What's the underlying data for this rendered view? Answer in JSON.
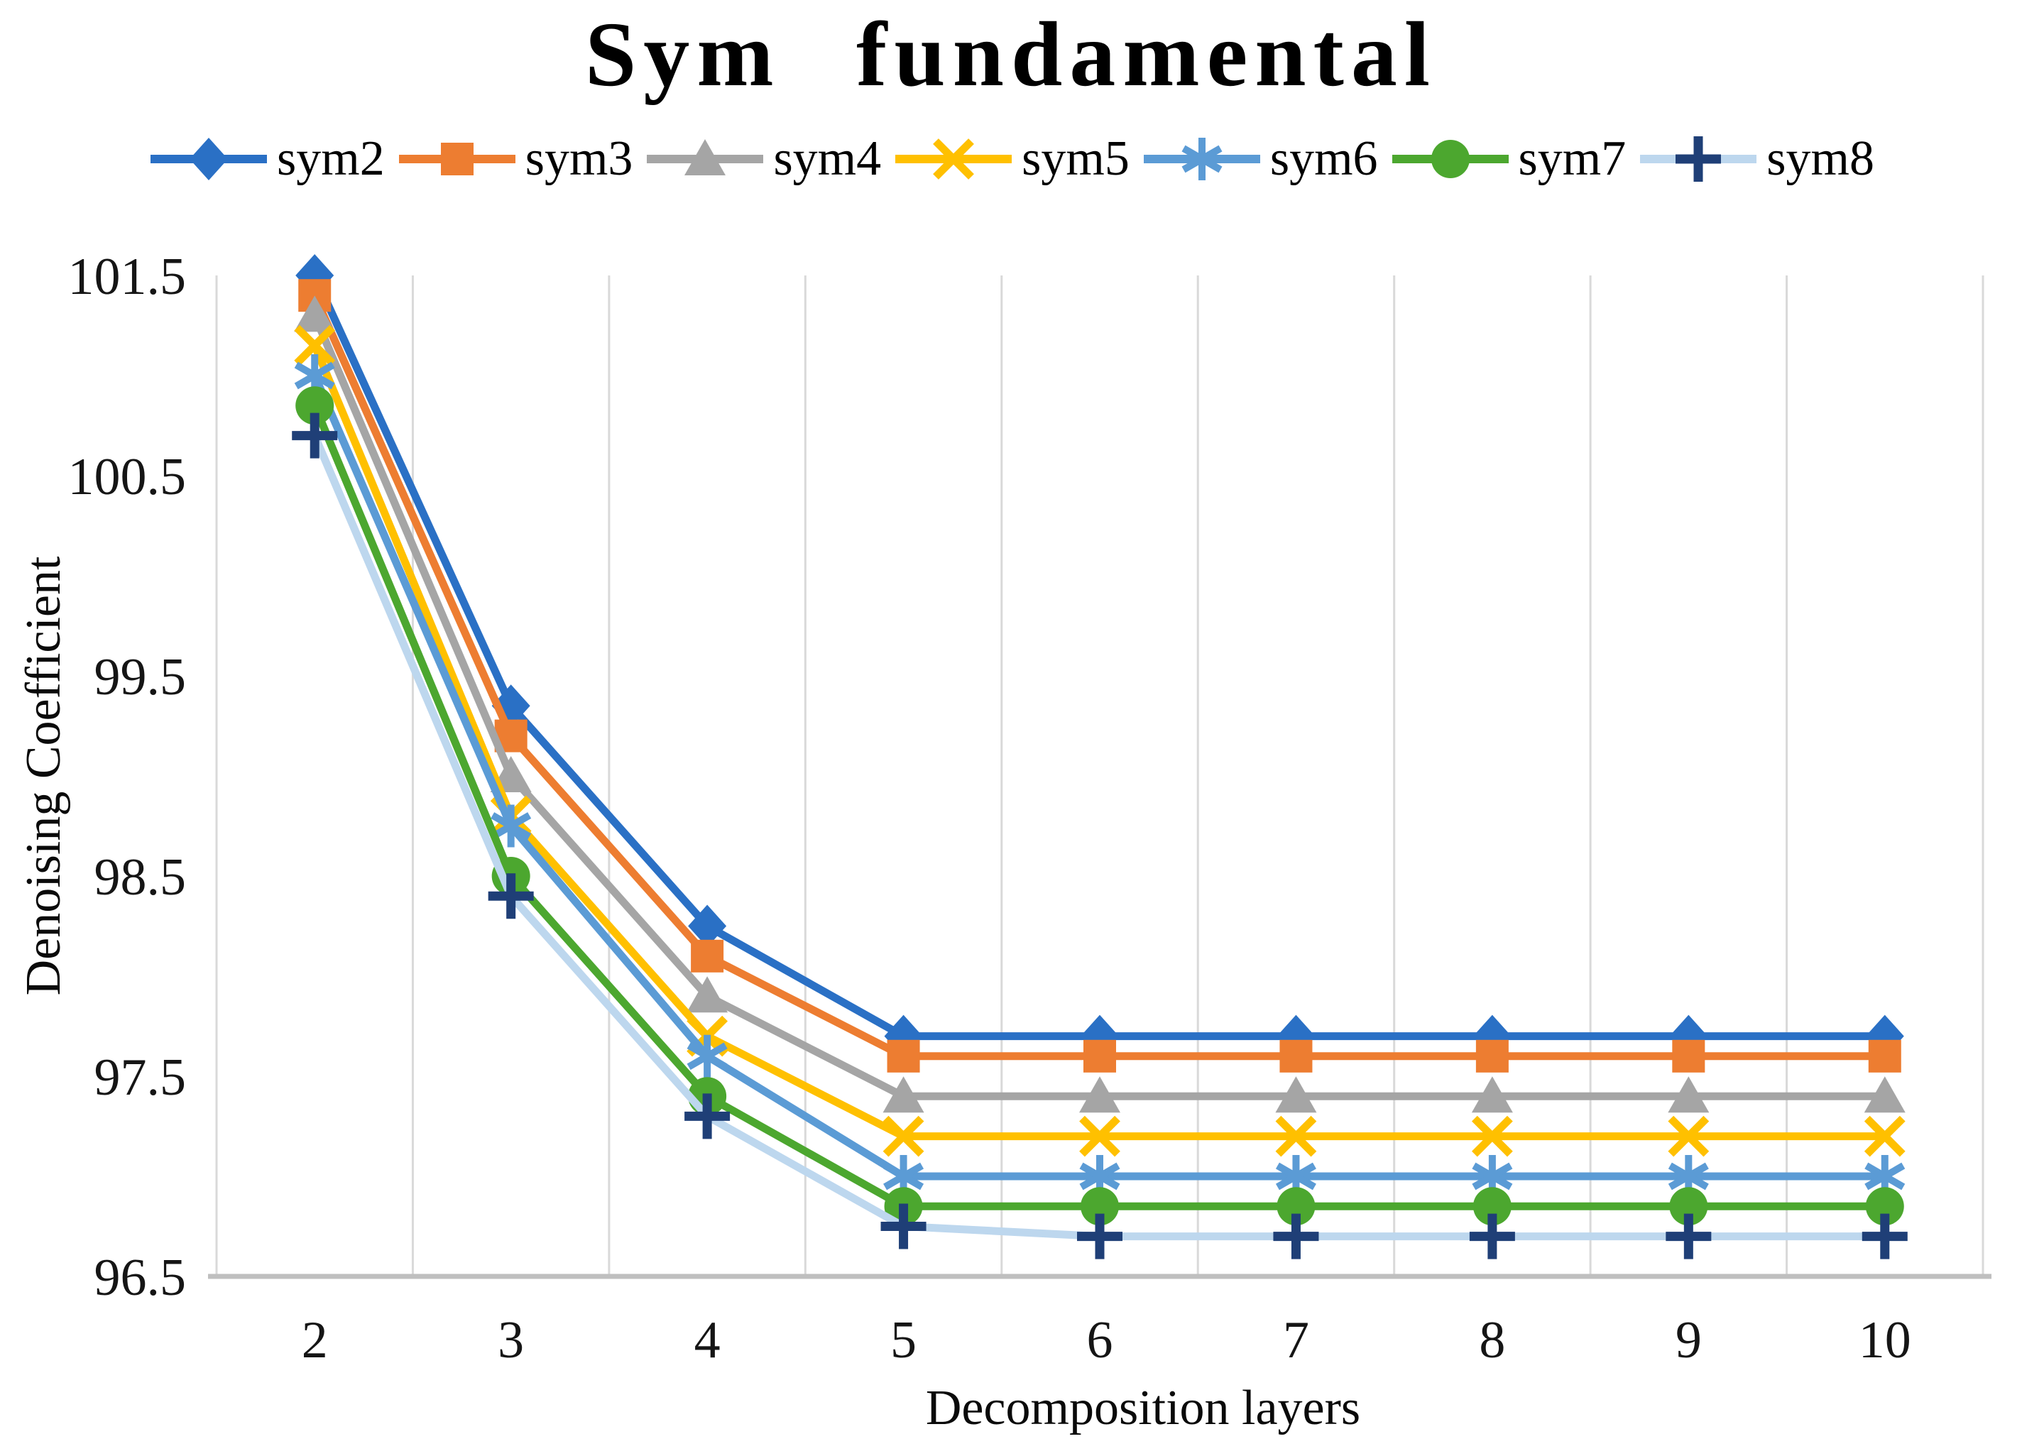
{
  "chart_data": {
    "type": "line",
    "title": "Sym fundamental",
    "xlabel": "Decomposition layers",
    "ylabel": "Denoising Coefficient",
    "categories": [
      2,
      3,
      4,
      5,
      6,
      7,
      8,
      9,
      10
    ],
    "y_ticks": [
      101.5,
      100.5,
      99.5,
      98.5,
      97.5,
      96.5
    ],
    "ylim": [
      96.5,
      101.5
    ],
    "grid": "vertical-only",
    "legend_position": "top",
    "axis_colors": {
      "gridline": "#D9D9D9",
      "axis_line": "#BFBFBF"
    },
    "series": [
      {
        "name": "sym2",
        "color": "#2A70C5",
        "marker": "diamond",
        "values": [
          101.5,
          99.35,
          98.25,
          97.7,
          97.7,
          97.7,
          97.7,
          97.7,
          97.7
        ]
      },
      {
        "name": "sym3",
        "color": "#ED7D31",
        "marker": "square",
        "values": [
          101.4,
          99.2,
          98.1,
          97.6,
          97.6,
          97.6,
          97.6,
          97.6,
          97.6
        ]
      },
      {
        "name": "sym4",
        "color": "#A5A5A5",
        "marker": "triangle",
        "values": [
          101.3,
          99.0,
          97.9,
          97.4,
          97.4,
          97.4,
          97.4,
          97.4,
          97.4
        ]
      },
      {
        "name": "sym5",
        "color": "#FFC000",
        "marker": "x",
        "values": [
          101.15,
          98.8,
          97.7,
          97.2,
          97.2,
          97.2,
          97.2,
          97.2,
          97.2
        ]
      },
      {
        "name": "sym6",
        "color": "#5B9BD5",
        "marker": "asterisk",
        "values": [
          101.0,
          98.75,
          97.6,
          97.0,
          97.0,
          97.0,
          97.0,
          97.0,
          97.0
        ]
      },
      {
        "name": "sym7",
        "color": "#4CA72F",
        "marker": "circle",
        "values": [
          100.85,
          98.5,
          97.4,
          96.85,
          96.85,
          96.85,
          96.85,
          96.85,
          96.85
        ]
      },
      {
        "name": "sym8",
        "color": "#BDD7EE",
        "marker_color": "#1F3F77",
        "marker": "plus",
        "values": [
          100.7,
          98.4,
          97.3,
          96.75,
          96.7,
          96.7,
          96.7,
          96.7,
          96.7
        ]
      }
    ]
  }
}
